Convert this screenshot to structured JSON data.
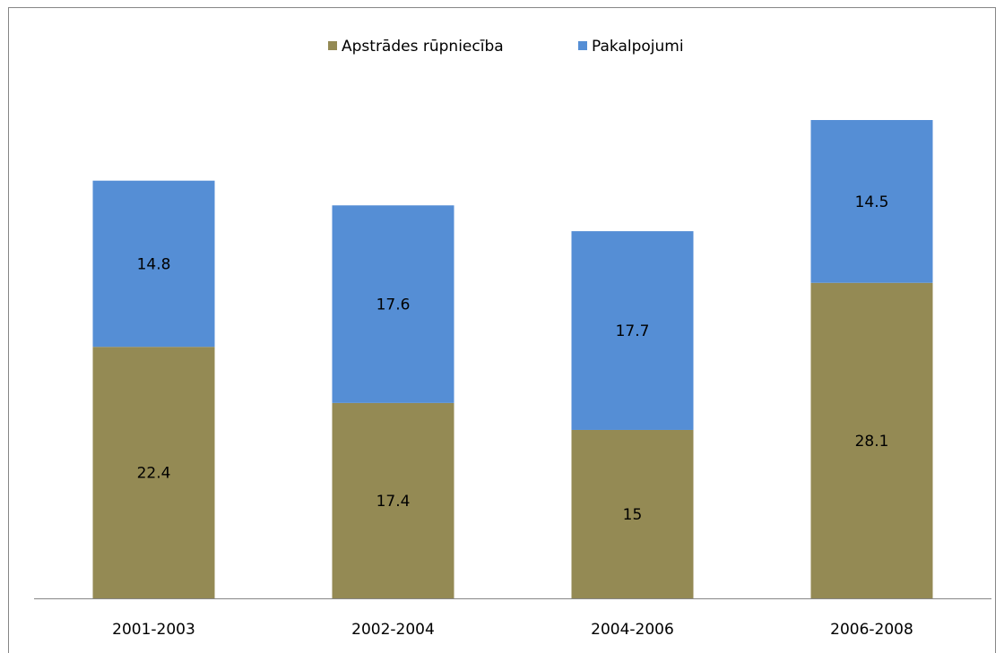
{
  "chart_data": {
    "type": "stacked_bar",
    "categories": [
      "2001-2003",
      "2002-2004",
      "2004-2006",
      "2006-2008"
    ],
    "series": [
      {
        "name": "Apstrādes rūpniecība",
        "color": "#948a54",
        "values": [
          22.4,
          17.4,
          15,
          28.1
        ]
      },
      {
        "name": "Pakalpojumi",
        "color": "#558ed5",
        "values": [
          14.8,
          17.6,
          17.7,
          14.5
        ]
      }
    ],
    "legend": "top"
  }
}
